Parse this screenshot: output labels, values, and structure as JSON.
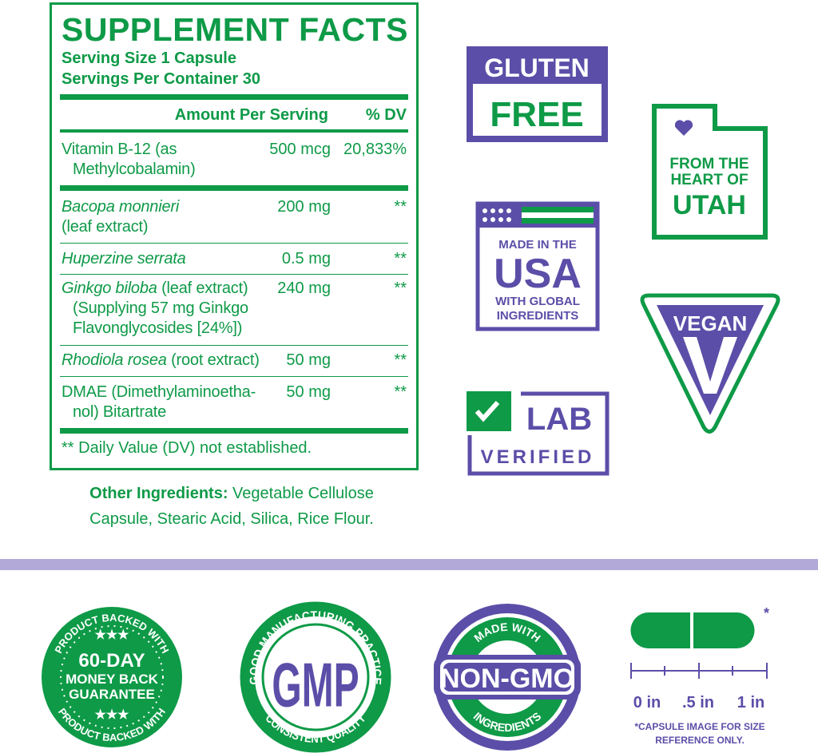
{
  "facts": {
    "title": "SUPPLEMENT FACTS",
    "serving_size": "Serving Size 1 Capsule",
    "servings_per_container": "Servings Per Container 30",
    "header_amount": "Amount Per Serving",
    "header_dv": "% DV",
    "rows": [
      {
        "name": "Vitamin B-12 (as",
        "name2": "Methylcobalamin)",
        "amount": "500 mcg",
        "dv": "20,833%"
      },
      {
        "name": "Bacopa monnieri",
        "name2": "(leaf extract)",
        "amount": "200 mg",
        "dv": "**"
      },
      {
        "name": "Huperzine serrata",
        "amount": "0.5 mg",
        "dv": "**"
      },
      {
        "name": "Ginkgo biloba",
        "name_suffix": " (leaf extract)",
        "name2": "(Supplying 57 mg Ginkgo",
        "name3": "Flavonglycosides [24%])",
        "amount": "240 mg",
        "dv": "**"
      },
      {
        "name": "Rhodiola rosea",
        "name_suffix": " (root extract)",
        "amount": "50 mg",
        "dv": "**"
      },
      {
        "name": "DMAE (Dimethylaminoetha-",
        "name2": "nol) Bitartrate",
        "amount": "50 mg",
        "dv": "**"
      }
    ],
    "footnote": "** Daily Value (DV) not established.",
    "other_label": "Other Ingredients:",
    "other_text": " Vegetable Cellulose",
    "other_text2": "Capsule, Stearic Acid, Silica, Rice Flour."
  },
  "badges": {
    "gluten": [
      "GLUTEN",
      "FREE"
    ],
    "utah": [
      "FROM THE",
      "HEART OF",
      "UTAH"
    ],
    "usa": [
      "MADE IN THE",
      "USA",
      "WITH GLOBAL",
      "INGREDIENTS"
    ],
    "vegan": [
      "VEGAN",
      "V"
    ],
    "lab": [
      "LAB",
      "VERIFIED"
    ],
    "money_back": {
      "arc_top": "PRODUCT BACKED WITH",
      "arc_bottom": "PRODUCT BACKED WITH",
      "stars": "★★★",
      "line1": "60-DAY",
      "line2": "MONEY BACK",
      "line3": "GUARANTEE"
    },
    "gmp": {
      "arc_top": "GOOD MANUFACTURING PRACTICE",
      "arc_bottom": "CONSISTENT QUALITY",
      "center": "GMP"
    },
    "non_gmo": {
      "arc_top": "MADE WITH",
      "arc_bottom": "INGREDIENTS",
      "center": "NON-GMO"
    }
  },
  "capsule": {
    "asterisk": "*",
    "scale_labels": [
      "0 in",
      ".5 in",
      "1 in"
    ],
    "note1": "*CAPSULE IMAGE FOR SIZE",
    "note2": "REFERENCE ONLY."
  },
  "colors": {
    "green": "#0e9a47",
    "purple": "#5b4ea8",
    "band": "#b3a9d9"
  }
}
